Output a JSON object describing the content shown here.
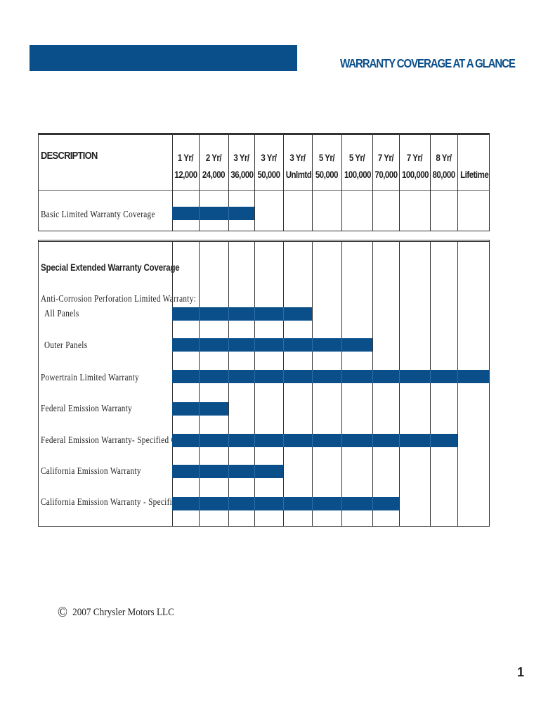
{
  "header": {
    "title": "WARRANTY COVERAGE AT A GLANCE",
    "banner_color": "#0a4f8a"
  },
  "table": {
    "description_label": "DESCRIPTION",
    "columns": [
      {
        "line1": "1 Yr/",
        "line2": "12,000"
      },
      {
        "line1": "2 Yr/",
        "line2": "24,000"
      },
      {
        "line1": "3 Yr/",
        "line2": "36,000"
      },
      {
        "line1": "3 Yr/",
        "line2": "50,000"
      },
      {
        "line1": "3 Yr/",
        "line2": "Unlmtd"
      },
      {
        "line1": "5 Yr/",
        "line2": "50,000"
      },
      {
        "line1": "5 Yr/",
        "line2": "100,000"
      },
      {
        "line1": "7 Yr/",
        "line2": "70,000"
      },
      {
        "line1": "7 Yr/",
        "line2": "100,000"
      },
      {
        "line1": "8 Yr/",
        "line2": "80,000"
      },
      {
        "line1": "",
        "line2": "Lifetime"
      }
    ],
    "basic": {
      "label": "Basic  Limited  Warranty  Coverage",
      "covered_columns": 3
    },
    "special": {
      "heading": "Special   Extended   Warranty   Coverage",
      "rows": [
        {
          "label": "Anti-Corrosion   Perforation   Limited   Warranty:",
          "covered_columns": 0
        },
        {
          "label": "All  Panels",
          "covered_columns": 5,
          "indent": true
        },
        {
          "label": "Outer  Panels",
          "covered_columns": 7,
          "indent": true
        },
        {
          "label": "Powertrain   Limited   Warranty",
          "covered_columns": 11
        },
        {
          "label": "Federal   Emission   Warranty",
          "covered_columns": 2
        },
        {
          "label": "Federal  Emission  Warranty-  Specified  Comp.",
          "covered_columns": 10
        },
        {
          "label": "California   Emission   Warranty",
          "covered_columns": 4
        },
        {
          "label": "California  Emission  Warranty  -  Specified  Comp.",
          "covered_columns": 8
        }
      ]
    },
    "bar_color": "#0a4f8a"
  },
  "footer": {
    "copyright_symbol": "©",
    "copyright_text": "2007 Chrysler Motors LLC",
    "page_number": "1"
  }
}
